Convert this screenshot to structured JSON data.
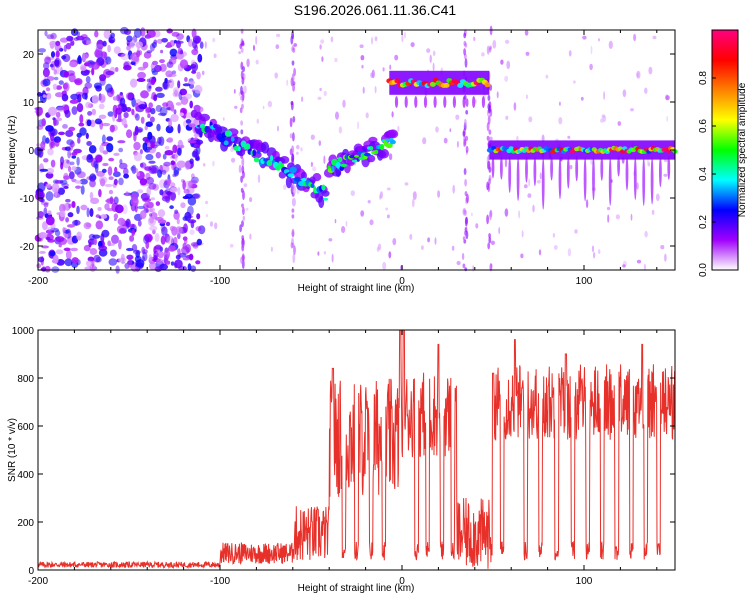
{
  "title": "S196.2026.061.11.36.C41",
  "chart_data": [
    {
      "type": "heatmap",
      "name": "spectrogram",
      "xlabel": "Height of straight line (km)",
      "ylabel": "Frequency (Hz)",
      "xlim": [
        -200,
        150
      ],
      "ylim": [
        -25,
        25
      ],
      "xticks": [
        -200,
        -100,
        0,
        100
      ],
      "yticks": [
        20,
        10,
        0,
        -10,
        -20
      ],
      "colorbar": {
        "label": "Normalized spectral amplitude",
        "range": [
          0,
          1
        ],
        "ticks": [
          "0.0",
          "0.2",
          "0.4",
          "0.6",
          "0.8"
        ],
        "tick_values": [
          0,
          0.2,
          0.4,
          0.6,
          0.8
        ],
        "colors": [
          "#ffffff",
          "#a000ff",
          "#0000ff",
          "#00ffff",
          "#00ff00",
          "#ffff00",
          "#ff8000",
          "#ff0000",
          "#ff0080"
        ]
      },
      "features": [
        {
          "label": "diffuse noise",
          "x_range": [
            -200,
            -110
          ],
          "freq_range": [
            -25,
            25
          ],
          "amplitude": 0.15
        },
        {
          "label": "descending track",
          "x_range": [
            -112,
            -42
          ],
          "freq_start": 6,
          "freq_end": -9,
          "amplitude": 0.35
        },
        {
          "label": "ascending track",
          "x_range": [
            -40,
            -5
          ],
          "freq_start": -4,
          "freq_end": 2,
          "amplitude": 0.4
        },
        {
          "label": "plateau band",
          "x_range": [
            -7,
            48
          ],
          "freq": 14,
          "amplitude": 0.85
        },
        {
          "label": "zero band",
          "x_range": [
            48,
            150
          ],
          "freq": 0,
          "amplitude": 0.9
        }
      ]
    },
    {
      "type": "line",
      "name": "snr",
      "xlabel": "Height of straight line (km)",
      "ylabel": "SNR (10 * v/v)",
      "xlim": [
        -200,
        150
      ],
      "ylim": [
        0,
        1000
      ],
      "xticks": [
        -200,
        -100,
        0,
        100
      ],
      "yticks": [
        0,
        200,
        400,
        600,
        800,
        1000
      ],
      "series": [
        {
          "name": "SNR",
          "color": "#e8302a"
        }
      ],
      "segments": [
        {
          "x_range": [
            -200,
            -100
          ],
          "level": 22,
          "noise": 12
        },
        {
          "x_range": [
            -100,
            -60
          ],
          "level": 70,
          "noise": 45
        },
        {
          "x_range": [
            -60,
            -40
          ],
          "level": 150,
          "noise": 120
        },
        {
          "x_range": [
            -40,
            0
          ],
          "level": 550,
          "noise": 250
        },
        {
          "x_range": [
            0,
            30
          ],
          "level": 650,
          "noise": 180
        },
        {
          "x_range": [
            30,
            50
          ],
          "level": 150,
          "noise": 150
        },
        {
          "x_range": [
            50,
            150
          ],
          "level": 700,
          "noise": 160
        }
      ],
      "peaks": [
        [
          -38,
          840
        ],
        [
          -1,
          1000
        ],
        [
          1,
          1000
        ],
        [
          20,
          940
        ],
        [
          50,
          820
        ],
        [
          62,
          960
        ],
        [
          90,
          900
        ],
        [
          132,
          940
        ]
      ],
      "dropouts": [
        -32,
        -25,
        -17,
        -10,
        8,
        14,
        22,
        28,
        55,
        68,
        76,
        85,
        94,
        102,
        110,
        118,
        126,
        134,
        141
      ]
    }
  ]
}
